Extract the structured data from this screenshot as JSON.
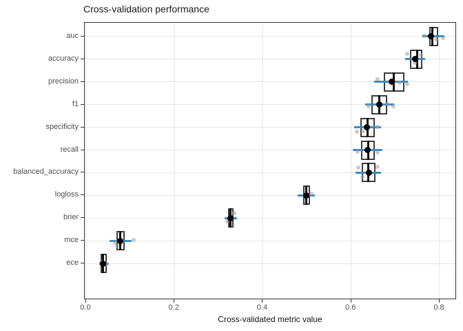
{
  "colors": {
    "blue_line": "#3d8bc0",
    "box_border": "#3c3c3c",
    "median": "#111111",
    "mean_dot": "#000000",
    "jitter": "#9e9e9e",
    "gridline": "#e6e6e6",
    "panel_border": "#333333",
    "tick_label": "#4d4d4d",
    "title": "#1a1a1a"
  },
  "chart_data": {
    "type": "boxplot",
    "orientation": "horizontal",
    "title": "Cross-validation performance",
    "xlabel": "Cross-validated metric value",
    "ylabel": "",
    "x_ticks": [
      0.0,
      0.2,
      0.4,
      0.6,
      0.8
    ],
    "x_tick_labels": [
      "0.0",
      "0.2",
      "0.4",
      "0.6",
      "0.8"
    ],
    "x_domain": [
      -0.003,
      0.839
    ],
    "grid": "major-only",
    "legend": "none",
    "categories": [
      "auc",
      "accuracy",
      "precision",
      "f1",
      "specificity",
      "recall",
      "balanced_accuracy",
      "logloss",
      "brier",
      "mce",
      "ece"
    ],
    "series": [
      {
        "metric": "auc",
        "q1": 0.777,
        "median": 0.784,
        "q3": 0.797,
        "mean": 0.781,
        "line_lo": 0.761,
        "line_hi": 0.811,
        "points": [
          {
            "v": 0.764,
            "dy": -1
          },
          {
            "v": 0.793,
            "dy": 4
          },
          {
            "v": 0.808,
            "dy": 2
          }
        ]
      },
      {
        "metric": "accuracy",
        "q1": 0.733,
        "median": 0.749,
        "q3": 0.761,
        "mean": 0.745,
        "line_lo": 0.722,
        "line_hi": 0.767,
        "points": [
          {
            "v": 0.726,
            "dy": -8
          },
          {
            "v": 0.758,
            "dy": -6
          },
          {
            "v": 0.744,
            "dy": 5
          }
        ]
      },
      {
        "metric": "precision",
        "q1": 0.673,
        "median": 0.696,
        "q3": 0.72,
        "mean": 0.691,
        "line_lo": 0.652,
        "line_hi": 0.728,
        "points": [
          {
            "v": 0.66,
            "dy": -4
          },
          {
            "v": 0.709,
            "dy": 1
          },
          {
            "v": 0.727,
            "dy": 3
          }
        ]
      },
      {
        "metric": "f1",
        "q1": 0.645,
        "median": 0.663,
        "q3": 0.681,
        "mean": 0.663,
        "line_lo": 0.632,
        "line_hi": 0.697,
        "points": [
          {
            "v": 0.64,
            "dy": 2
          },
          {
            "v": 0.683,
            "dy": -1
          },
          {
            "v": 0.696,
            "dy": 2
          }
        ]
      },
      {
        "metric": "specificity",
        "q1": 0.621,
        "median": 0.637,
        "q3": 0.653,
        "mean": 0.636,
        "line_lo": 0.606,
        "line_hi": 0.668,
        "points": [
          {
            "v": 0.613,
            "dy": 6
          },
          {
            "v": 0.627,
            "dy": 5
          },
          {
            "v": 0.66,
            "dy": -1
          }
        ]
      },
      {
        "metric": "recall",
        "q1": 0.623,
        "median": 0.638,
        "q3": 0.654,
        "mean": 0.637,
        "line_lo": 0.604,
        "line_hi": 0.671,
        "points": [
          {
            "v": 0.614,
            "dy": 2
          },
          {
            "v": 0.66,
            "dy": 3
          }
        ]
      },
      {
        "metric": "balanced_accuracy",
        "q1": 0.624,
        "median": 0.638,
        "q3": 0.655,
        "mean": 0.64,
        "line_lo": 0.61,
        "line_hi": 0.667,
        "points": [
          {
            "v": 0.616,
            "dy": -7
          },
          {
            "v": 0.659,
            "dy": -8
          },
          {
            "v": 0.625,
            "dy": 7
          }
        ]
      },
      {
        "metric": "logloss",
        "q1": 0.492,
        "median": 0.499,
        "q3": 0.507,
        "mean": 0.499,
        "line_lo": 0.479,
        "line_hi": 0.518,
        "points": [
          {
            "v": 0.51,
            "dy": -2
          }
        ]
      },
      {
        "metric": "brier",
        "q1": 0.321,
        "median": 0.327,
        "q3": 0.334,
        "mean": 0.327,
        "line_lo": 0.313,
        "line_hi": 0.341,
        "points": [
          {
            "v": 0.336,
            "dy": -7
          },
          {
            "v": 0.32,
            "dy": 5
          }
        ]
      },
      {
        "metric": "mce",
        "q1": 0.069,
        "median": 0.078,
        "q3": 0.087,
        "mean": 0.077,
        "line_lo": 0.053,
        "line_hi": 0.103,
        "points": [
          {
            "v": 0.107,
            "dy": -1
          },
          {
            "v": 0.07,
            "dy": 7
          },
          {
            "v": 0.065,
            "dy": 3
          }
        ]
      },
      {
        "metric": "ece",
        "q1": 0.033,
        "median": 0.039,
        "q3": 0.047,
        "mean": 0.039,
        "line_lo": 0.03,
        "line_hi": 0.051,
        "points": [
          {
            "v": 0.046,
            "dy": 2
          },
          {
            "v": 0.034,
            "dy": -2
          }
        ]
      }
    ]
  }
}
